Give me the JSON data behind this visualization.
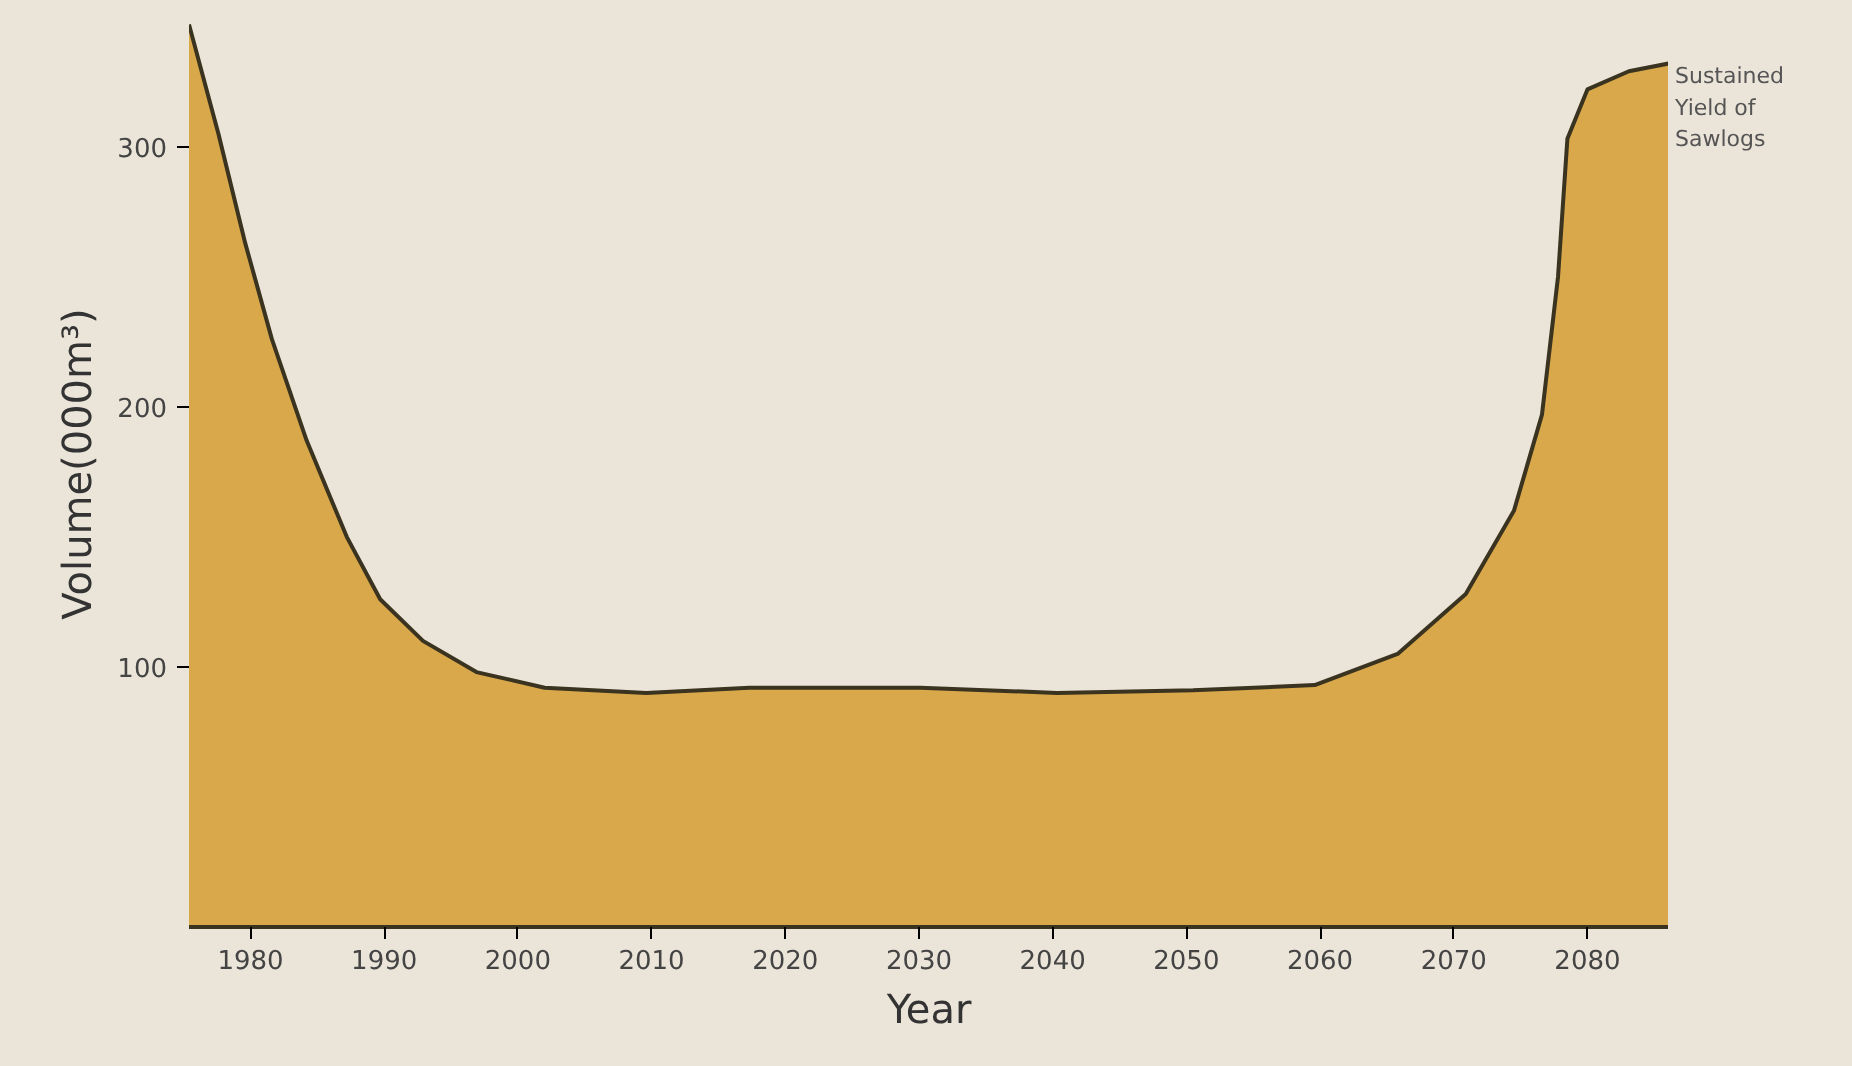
{
  "chart_data": {
    "type": "area",
    "xlabel": "Year",
    "ylabel": "Volume(000m³)",
    "x": [
      1975.4,
      1977.6,
      1979.6,
      1981.6,
      1984.2,
      1987.2,
      1989.7,
      1992.9,
      1996.9,
      2002,
      2009.6,
      2017.3,
      2030.1,
      2040.3,
      2050.5,
      2059.6,
      2065.8,
      2070.9,
      2074.5,
      2076.6,
      2077.8,
      2078.5,
      2080,
      2083.1,
      2086.1
    ],
    "series": [
      {
        "color": "#d9a84a",
        "values": [
          347,
          305,
          263,
          226,
          187,
          150,
          126,
          110,
          98,
          92,
          90,
          92,
          92,
          90,
          91,
          93,
          105,
          128,
          160,
          197,
          250,
          303,
          322,
          329,
          332
        ]
      }
    ],
    "xlim": [
      1975.4,
      2086.1
    ],
    "ylim": [
      0,
      356
    ],
    "xticks": [
      1980,
      1990,
      2000,
      2010,
      2020,
      2030,
      2040,
      2050,
      2060,
      2070,
      2080
    ],
    "yticks": [
      100,
      200,
      300
    ],
    "grid": false,
    "annotations": [
      {
        "text": "Sustained\nYield of\nSawlogs",
        "x": 2086.1,
        "y": 332
      }
    ]
  }
}
